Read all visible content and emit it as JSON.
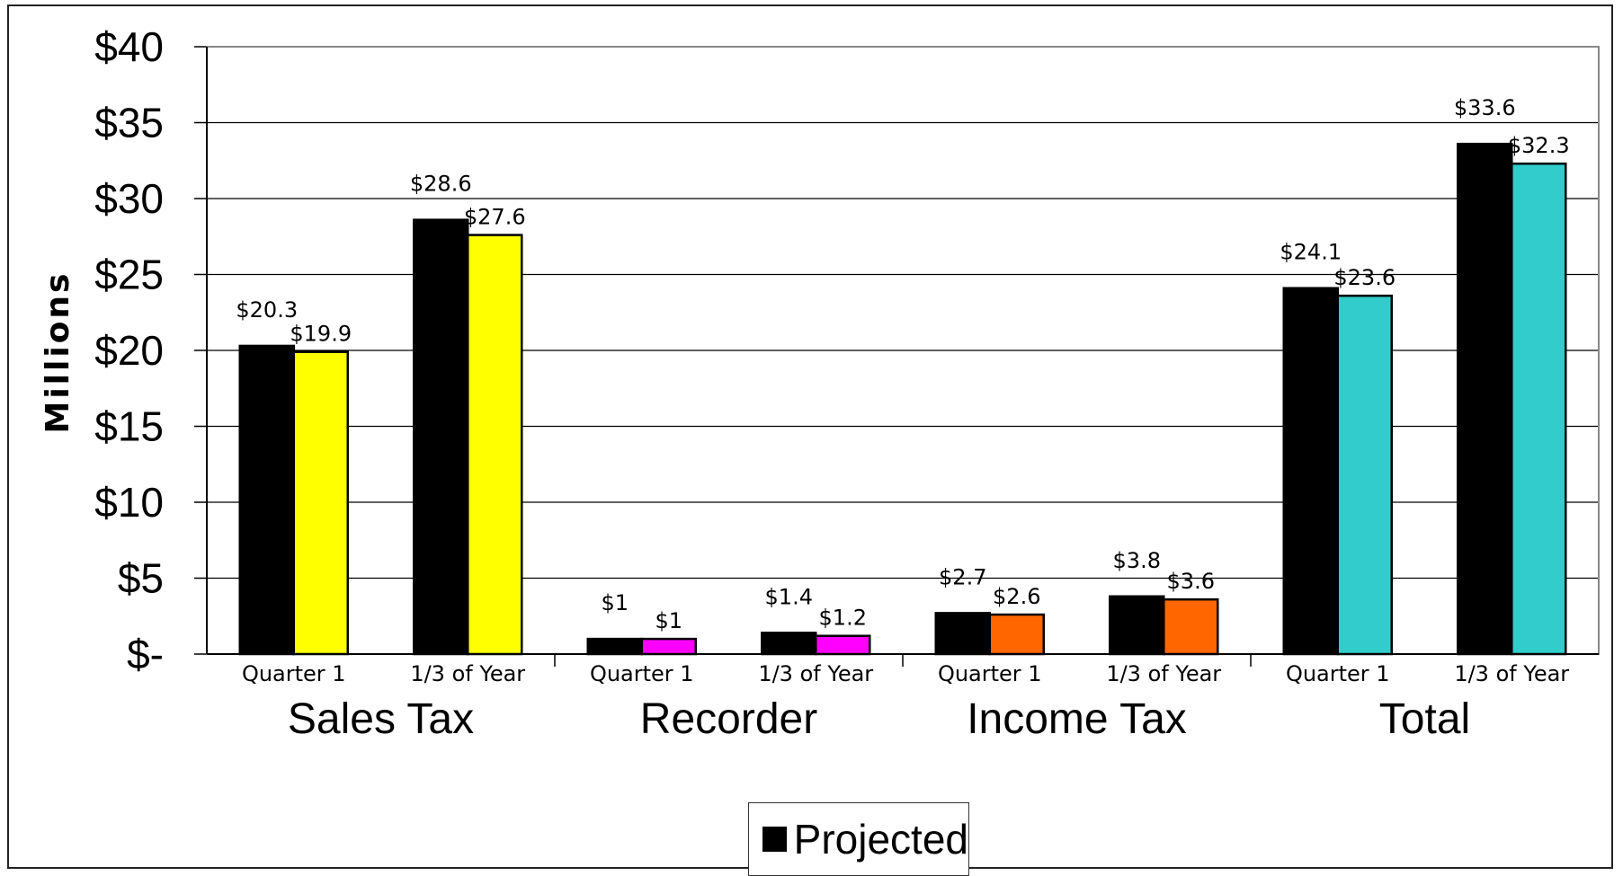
{
  "chart_data": {
    "type": "bar",
    "title": "",
    "xlabel": "",
    "ylabel": "Millions",
    "ylim": [
      0,
      40
    ],
    "yticks": [
      {
        "value": 40,
        "label": "$40"
      },
      {
        "value": 35,
        "label": "$35"
      },
      {
        "value": 30,
        "label": "$30"
      },
      {
        "value": 25,
        "label": "$25"
      },
      {
        "value": 20,
        "label": "$20"
      },
      {
        "value": 15,
        "label": "$15"
      },
      {
        "value": 10,
        "label": "$10"
      },
      {
        "value": 5,
        "label": "$5"
      },
      {
        "value": 0,
        "label": "$-"
      }
    ],
    "grid": true,
    "legend_position": "bottom",
    "groups": [
      {
        "label": "Sales Tax",
        "color": "#ffff00",
        "subcategories": [
          {
            "label": "Quarter 1",
            "values": [
              20.3,
              19.9
            ],
            "data_labels": [
              "$20.3",
              "$19.9"
            ]
          },
          {
            "label": "1/3 of Year",
            "values": [
              28.6,
              27.6
            ],
            "data_labels": [
              "$28.6",
              "$27.6"
            ]
          }
        ]
      },
      {
        "label": "Recorder",
        "color": "#ff00ff",
        "subcategories": [
          {
            "label": "Quarter 1",
            "values": [
              1.0,
              1.0
            ],
            "data_labels": [
              "$1",
              "$1"
            ]
          },
          {
            "label": "1/3 of Year",
            "values": [
              1.4,
              1.2
            ],
            "data_labels": [
              "$1.4",
              "$1.2"
            ]
          }
        ]
      },
      {
        "label": "Income Tax",
        "color": "#ff6600",
        "subcategories": [
          {
            "label": "Quarter 1",
            "values": [
              2.7,
              2.6
            ],
            "data_labels": [
              "$2.7",
              "$2.6"
            ]
          },
          {
            "label": "1/3 of Year",
            "values": [
              3.8,
              3.6
            ],
            "data_labels": [
              "$3.8",
              "$3.6"
            ]
          }
        ]
      },
      {
        "label": "Total",
        "color": "#33cccc",
        "subcategories": [
          {
            "label": "Quarter 1",
            "values": [
              24.1,
              23.6
            ],
            "data_labels": [
              "$24.1",
              "$23.6"
            ]
          },
          {
            "label": "1/3 of Year",
            "values": [
              33.6,
              32.3
            ],
            "data_labels": [
              "$33.6",
              "$32.3"
            ]
          }
        ]
      }
    ],
    "series": [
      {
        "name": "Projected",
        "color": "#000000"
      },
      {
        "color": "group"
      }
    ]
  },
  "legend": {
    "items": [
      {
        "label": "Projected",
        "color": "#000000"
      }
    ]
  }
}
